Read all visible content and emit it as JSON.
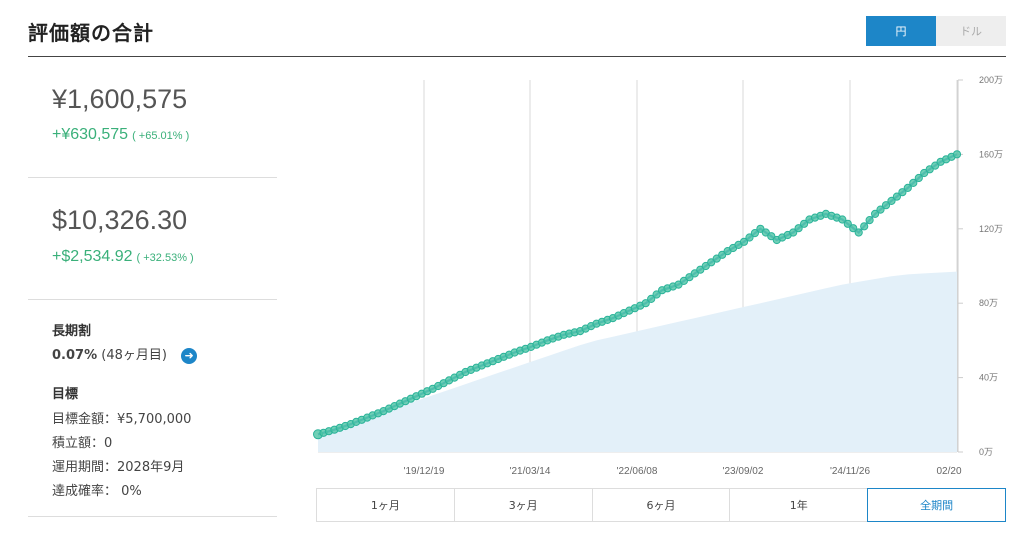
{
  "header": {
    "title": "評価額の合計",
    "currency_options": [
      "円",
      "ドル"
    ],
    "active_currency": "円"
  },
  "summary_yen": {
    "value": "¥1,600,575",
    "gain": "+¥630,575",
    "gain_pct": "( +65.01% )"
  },
  "summary_usd": {
    "value": "$10,326.30",
    "gain": "+$2,534.92",
    "gain_pct": "( +32.53% )"
  },
  "long_term": {
    "heading": "長期割",
    "rate": "0.07%",
    "months": "(48ヶ月目)"
  },
  "goal": {
    "heading": "目標",
    "amount_label": "目標金額：¥5,700,000",
    "deposit_label": "積立額：0",
    "period_label": "運用期間：2028年9月",
    "probability_label": "達成確率： 0%"
  },
  "range_buttons": [
    "1ヶ月",
    "3ヶ月",
    "6ヶ月",
    "1年",
    "全期間"
  ],
  "active_range": "全期間",
  "colors": {
    "accent": "#1d86c8",
    "gain": "#3ab07a",
    "line": "#2bb39a",
    "marker": "#4cc4a4",
    "deposit_fill": "#e3f0f9"
  },
  "chart_data": {
    "type": "area",
    "x_tick_labels": [
      "'19/12/19",
      "'21/03/14",
      "'22/06/08",
      "'23/09/02",
      "'24/11/26",
      "02/20"
    ],
    "y_tick_labels": [
      "0万",
      "40万",
      "80万",
      "120万",
      "160万",
      "200万"
    ],
    "ylim": [
      0,
      2000000
    ],
    "grid": "vertical",
    "series": [
      {
        "kind": "valuation",
        "values": [
          95000,
          120000,
          150000,
          185000,
          220000,
          260000,
          300000,
          340000,
          385000,
          430000,
          465000,
          500000,
          535000,
          565000,
          600000,
          630000,
          650000,
          690000,
          720000,
          760000,
          800000,
          870000,
          900000,
          960000,
          1020000,
          1080000,
          1130000,
          1200000,
          1140000,
          1180000,
          1250000,
          1280000,
          1250000,
          1180000,
          1280000,
          1350000,
          1420000,
          1500000,
          1560000,
          1600575
        ]
      },
      {
        "kind": "deposit",
        "values": [
          95000,
          125000,
          155000,
          185000,
          215000,
          245000,
          275000,
          305000,
          335000,
          365000,
          395000,
          425000,
          455000,
          485000,
          515000,
          545000,
          575000,
          600000,
          620000,
          640000,
          660000,
          680000,
          700000,
          720000,
          740000,
          760000,
          780000,
          800000,
          820000,
          840000,
          860000,
          880000,
          900000,
          915000,
          930000,
          945000,
          955000,
          960000,
          965000,
          970000
        ]
      }
    ]
  }
}
